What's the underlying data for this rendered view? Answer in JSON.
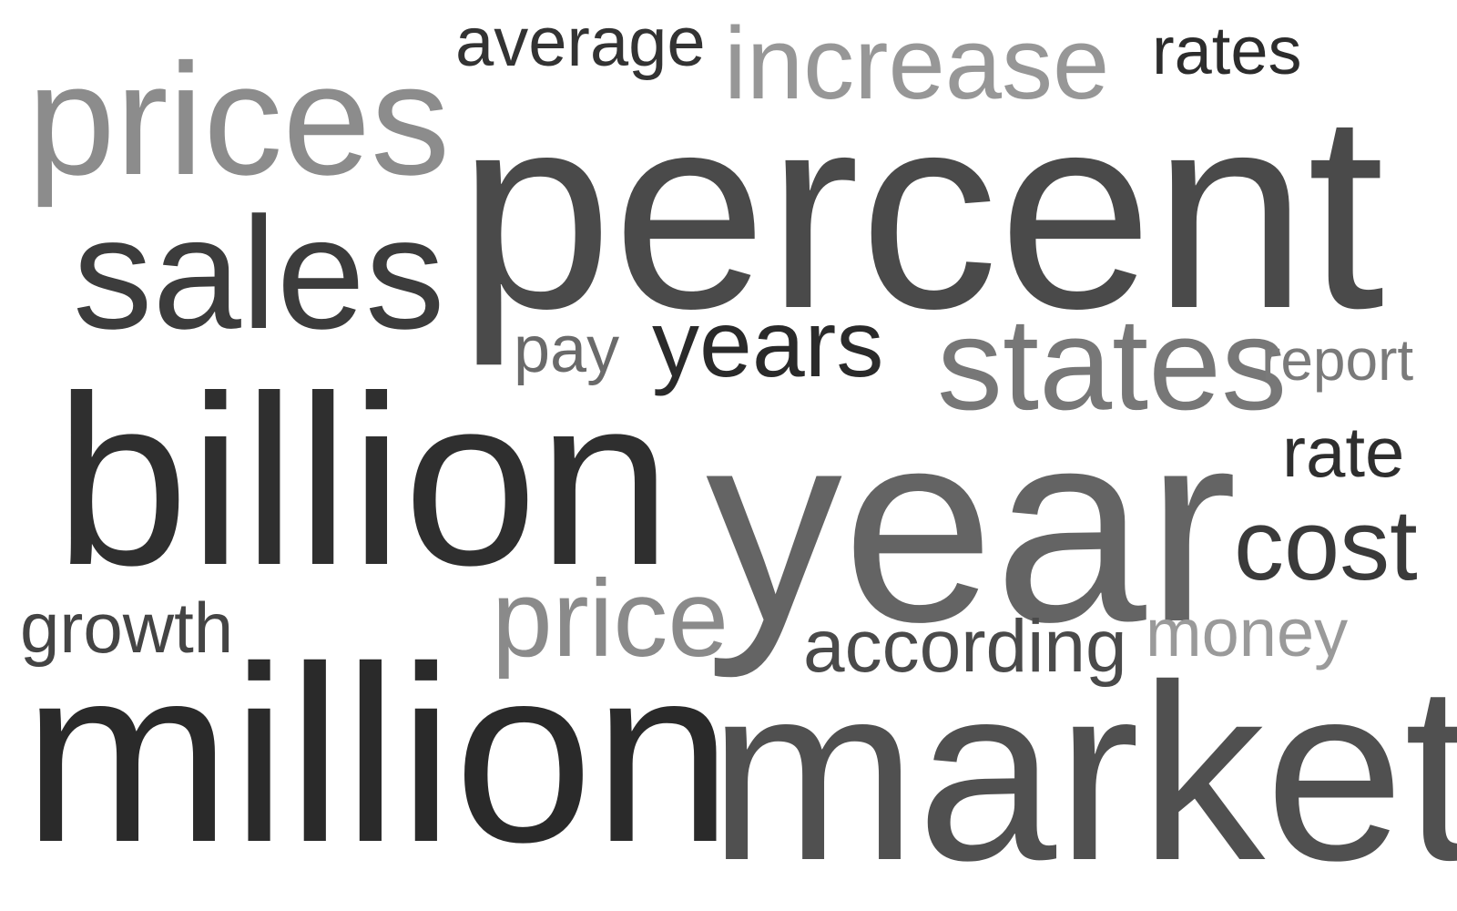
{
  "words": [
    {
      "text": "average",
      "color": "#333333"
    },
    {
      "text": "increase",
      "color": "#979797"
    },
    {
      "text": "rates",
      "color": "#2c2c2c"
    },
    {
      "text": "prices",
      "color": "#8c8c8c"
    },
    {
      "text": "percent",
      "color": "#4a4a4a"
    },
    {
      "text": "sales",
      "color": "#3c3c3c"
    },
    {
      "text": "pay",
      "color": "#6a6a6a"
    },
    {
      "text": "years",
      "color": "#2a2a2a"
    },
    {
      "text": "states",
      "color": "#777777"
    },
    {
      "text": "report",
      "color": "#7a7a7a"
    },
    {
      "text": "billion",
      "color": "#2f2f2f"
    },
    {
      "text": "year",
      "color": "#646464"
    },
    {
      "text": "rate",
      "color": "#2e2e2e"
    },
    {
      "text": "cost",
      "color": "#3a3a3a"
    },
    {
      "text": "growth",
      "color": "#444444"
    },
    {
      "text": "price",
      "color": "#8a8a8a"
    },
    {
      "text": "according",
      "color": "#4a4a4a"
    },
    {
      "text": "money",
      "color": "#9a9a9a"
    },
    {
      "text": "million",
      "color": "#2a2a2a"
    },
    {
      "text": "market",
      "color": "#505050"
    }
  ]
}
